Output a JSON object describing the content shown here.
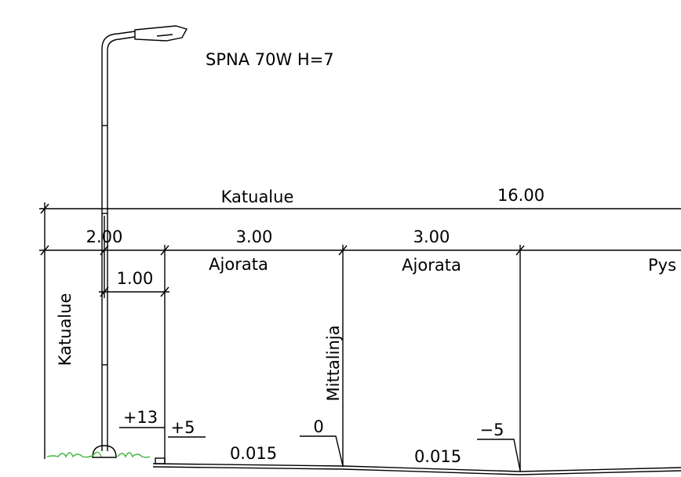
{
  "luminaire": "SPNA 70W H=7",
  "top_dimension": {
    "label": "Katualue",
    "width": "16.00"
  },
  "segments": [
    {
      "width": "2.00"
    },
    {
      "width": "3.00",
      "label": "Ajorata"
    },
    {
      "width": "3.00",
      "label": "Ajorata"
    },
    {
      "label": "Pys"
    }
  ],
  "sub_dimension": "1.00",
  "side_label": "Katualue",
  "centerline_label": "Mittalinja",
  "heights": [
    "+13",
    "+5",
    "0",
    "−5"
  ],
  "slopes": [
    "0.015",
    "0.015"
  ]
}
